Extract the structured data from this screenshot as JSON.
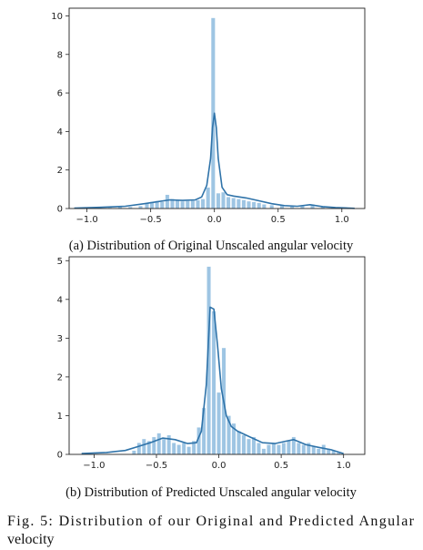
{
  "figure": {
    "label_line1": "Fig. 5: Distribution of our Original and Predicted Angular",
    "label_line2": "velocity"
  },
  "chart_data": [
    {
      "type": "bar",
      "panel": "a",
      "caption": "(a) Distribution of Original Unscaled angular velocity",
      "xlim": [
        -1.14,
        1.18
      ],
      "ylim": [
        0,
        10.4
      ],
      "xticks": [
        -1.0,
        -0.5,
        0.0,
        0.5,
        1.0
      ],
      "xtick_labels": [
        "−1.0",
        "−0.5",
        "0.0",
        "0.5",
        "1.0"
      ],
      "yticks": [
        0,
        2,
        4,
        6,
        8,
        10
      ],
      "ytick_labels": [
        "0",
        "2",
        "4",
        "6",
        "8",
        "10"
      ],
      "bin_width": 0.032,
      "bars": [
        {
          "x": -0.98,
          "h": 0.03
        },
        {
          "x": -0.9,
          "h": 0.05
        },
        {
          "x": -0.82,
          "h": 0.05
        },
        {
          "x": -0.74,
          "h": 0.08
        },
        {
          "x": -0.66,
          "h": 0.09
        },
        {
          "x": -0.58,
          "h": 0.14
        },
        {
          "x": -0.53,
          "h": 0.27
        },
        {
          "x": -0.49,
          "h": 0.35
        },
        {
          "x": -0.45,
          "h": 0.4
        },
        {
          "x": -0.41,
          "h": 0.35
        },
        {
          "x": -0.37,
          "h": 0.72
        },
        {
          "x": -0.33,
          "h": 0.5
        },
        {
          "x": -0.29,
          "h": 0.44
        },
        {
          "x": -0.25,
          "h": 0.38
        },
        {
          "x": -0.21,
          "h": 0.4
        },
        {
          "x": -0.17,
          "h": 0.42
        },
        {
          "x": -0.13,
          "h": 0.44
        },
        {
          "x": -0.09,
          "h": 0.5
        },
        {
          "x": -0.05,
          "h": 1.1
        },
        {
          "x": -0.01,
          "h": 9.9
        },
        {
          "x": 0.03,
          "h": 0.8
        },
        {
          "x": 0.07,
          "h": 0.85
        },
        {
          "x": 0.11,
          "h": 0.6
        },
        {
          "x": 0.15,
          "h": 0.55
        },
        {
          "x": 0.19,
          "h": 0.5
        },
        {
          "x": 0.23,
          "h": 0.45
        },
        {
          "x": 0.27,
          "h": 0.38
        },
        {
          "x": 0.31,
          "h": 0.35
        },
        {
          "x": 0.35,
          "h": 0.3
        },
        {
          "x": 0.39,
          "h": 0.22
        },
        {
          "x": 0.45,
          "h": 0.18
        },
        {
          "x": 0.53,
          "h": 0.16
        },
        {
          "x": 0.61,
          "h": 0.14
        },
        {
          "x": 0.69,
          "h": 0.18
        },
        {
          "x": 0.77,
          "h": 0.22
        },
        {
          "x": 0.85,
          "h": 0.12
        },
        {
          "x": 0.93,
          "h": 0.06
        },
        {
          "x": 1.01,
          "h": 0.03
        }
      ],
      "kde": {
        "x": [
          -1.1,
          -0.9,
          -0.7,
          -0.55,
          -0.45,
          -0.35,
          -0.25,
          -0.15,
          -0.1,
          -0.06,
          -0.03,
          -0.015,
          0.0,
          0.015,
          0.03,
          0.06,
          0.1,
          0.15,
          0.25,
          0.35,
          0.45,
          0.55,
          0.65,
          0.75,
          0.85,
          0.95,
          1.1
        ],
        "y": [
          0.02,
          0.06,
          0.12,
          0.25,
          0.35,
          0.45,
          0.42,
          0.45,
          0.6,
          1.2,
          2.6,
          4.2,
          4.95,
          4.2,
          2.6,
          1.1,
          0.72,
          0.65,
          0.55,
          0.4,
          0.25,
          0.15,
          0.12,
          0.2,
          0.1,
          0.05,
          0.01
        ]
      }
    },
    {
      "type": "bar",
      "panel": "b",
      "caption": "(b) Distribution of Predicted Unscaled angular velocity",
      "xlim": [
        -1.2,
        1.17
      ],
      "ylim": [
        0,
        5.1
      ],
      "xticks": [
        -1.0,
        -0.5,
        0.0,
        0.5,
        1.0
      ],
      "xtick_labels": [
        "−1.0",
        "−0.5",
        "0.0",
        "0.5",
        "1.0"
      ],
      "yticks": [
        0,
        1,
        2,
        3,
        4,
        5
      ],
      "ytick_labels": [
        "0",
        "1",
        "2",
        "3",
        "4",
        "5"
      ],
      "bin_width": 0.032,
      "bars": [
        {
          "x": -0.68,
          "h": 0.1
        },
        {
          "x": -0.64,
          "h": 0.3
        },
        {
          "x": -0.6,
          "h": 0.4
        },
        {
          "x": -0.56,
          "h": 0.35
        },
        {
          "x": -0.52,
          "h": 0.45
        },
        {
          "x": -0.48,
          "h": 0.55
        },
        {
          "x": -0.44,
          "h": 0.4
        },
        {
          "x": -0.4,
          "h": 0.5
        },
        {
          "x": -0.36,
          "h": 0.3
        },
        {
          "x": -0.32,
          "h": 0.25
        },
        {
          "x": -0.28,
          "h": 0.3
        },
        {
          "x": -0.24,
          "h": 0.2
        },
        {
          "x": -0.2,
          "h": 0.35
        },
        {
          "x": -0.16,
          "h": 0.7
        },
        {
          "x": -0.12,
          "h": 1.2
        },
        {
          "x": -0.08,
          "h": 4.85
        },
        {
          "x": -0.04,
          "h": 3.7
        },
        {
          "x": 0.0,
          "h": 1.6
        },
        {
          "x": 0.04,
          "h": 2.75
        },
        {
          "x": 0.08,
          "h": 1.0
        },
        {
          "x": 0.12,
          "h": 0.8
        },
        {
          "x": 0.16,
          "h": 0.6
        },
        {
          "x": 0.2,
          "h": 0.5
        },
        {
          "x": 0.24,
          "h": 0.4
        },
        {
          "x": 0.28,
          "h": 0.45
        },
        {
          "x": 0.32,
          "h": 0.3
        },
        {
          "x": 0.36,
          "h": 0.15
        },
        {
          "x": 0.4,
          "h": 0.25
        },
        {
          "x": 0.44,
          "h": 0.3
        },
        {
          "x": 0.48,
          "h": 0.25
        },
        {
          "x": 0.52,
          "h": 0.3
        },
        {
          "x": 0.56,
          "h": 0.35
        },
        {
          "x": 0.6,
          "h": 0.45
        },
        {
          "x": 0.64,
          "h": 0.3
        },
        {
          "x": 0.68,
          "h": 0.25
        },
        {
          "x": 0.72,
          "h": 0.3
        },
        {
          "x": 0.76,
          "h": 0.2
        },
        {
          "x": 0.8,
          "h": 0.15
        },
        {
          "x": 0.84,
          "h": 0.25
        },
        {
          "x": 0.88,
          "h": 0.15
        },
        {
          "x": 0.92,
          "h": 0.1
        },
        {
          "x": 0.96,
          "h": 0.05
        }
      ],
      "kde": {
        "x": [
          -1.1,
          -0.9,
          -0.75,
          -0.65,
          -0.55,
          -0.45,
          -0.35,
          -0.25,
          -0.18,
          -0.14,
          -0.1,
          -0.07,
          -0.04,
          -0.01,
          0.02,
          0.06,
          0.1,
          0.15,
          0.25,
          0.35,
          0.45,
          0.55,
          0.6,
          0.7,
          0.8,
          0.9,
          1.0
        ],
        "y": [
          0.02,
          0.05,
          0.1,
          0.2,
          0.3,
          0.42,
          0.38,
          0.28,
          0.3,
          0.6,
          1.8,
          3.8,
          3.75,
          2.8,
          1.7,
          1.0,
          0.72,
          0.6,
          0.45,
          0.3,
          0.28,
          0.35,
          0.38,
          0.25,
          0.18,
          0.12,
          0.02
        ]
      }
    }
  ],
  "colors": {
    "bar": "#9ec5e3",
    "kde": "#2f73a9",
    "axis": "#222222"
  }
}
